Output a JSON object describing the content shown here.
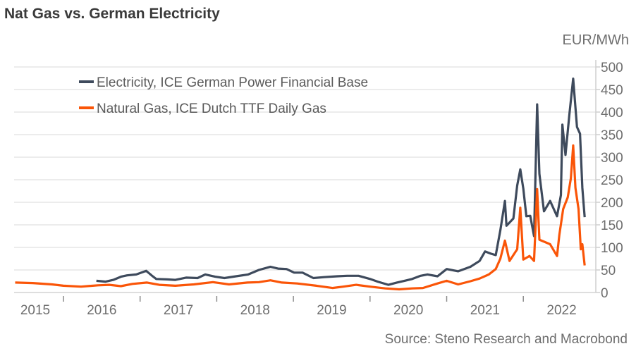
{
  "chart_data": {
    "type": "line",
    "title": "Nat Gas vs. German Electricity",
    "ylabel": "EUR/MWh",
    "source": "Source: Steno Research and Macrobond",
    "xlim": [
      2015.37,
      2022.85
    ],
    "ylim": [
      0,
      500
    ],
    "yticks": [
      0,
      50,
      100,
      150,
      200,
      250,
      300,
      350,
      400,
      450,
      500
    ],
    "ytick_labels": [
      "0",
      "50",
      "100",
      "150",
      "200",
      "250",
      "300",
      "350",
      "400",
      "450",
      "500"
    ],
    "xtick_positions": [
      2016,
      2017,
      2018,
      2019,
      2020,
      2021,
      2022
    ],
    "xlabels": [
      {
        "label": "2015",
        "x": 2015.5
      },
      {
        "label": "2016",
        "x": 2016.5
      },
      {
        "label": "2017",
        "x": 2017.5
      },
      {
        "label": "2018",
        "x": 2018.5
      },
      {
        "label": "2019",
        "x": 2019.5
      },
      {
        "label": "2020",
        "x": 2020.5
      },
      {
        "label": "2021",
        "x": 2021.5
      },
      {
        "label": "2022",
        "x": 2022.5
      }
    ],
    "grid": true,
    "legend_position": "top-left",
    "series": [
      {
        "name": "Electricity, ICE German Power Financial Base",
        "color": "#3e4a5c",
        "points": [
          [
            2016.43,
            26
          ],
          [
            2016.55,
            24
          ],
          [
            2016.65,
            28
          ],
          [
            2016.75,
            35
          ],
          [
            2016.83,
            38
          ],
          [
            2016.95,
            40
          ],
          [
            2017.08,
            48
          ],
          [
            2017.15,
            38
          ],
          [
            2017.21,
            30
          ],
          [
            2017.35,
            29
          ],
          [
            2017.46,
            28
          ],
          [
            2017.6,
            33
          ],
          [
            2017.75,
            32
          ],
          [
            2017.85,
            40
          ],
          [
            2017.98,
            35
          ],
          [
            2018.1,
            32
          ],
          [
            2018.25,
            36
          ],
          [
            2018.41,
            40
          ],
          [
            2018.55,
            50
          ],
          [
            2018.7,
            57
          ],
          [
            2018.8,
            53
          ],
          [
            2018.91,
            52
          ],
          [
            2019.01,
            44
          ],
          [
            2019.12,
            44
          ],
          [
            2019.26,
            32
          ],
          [
            2019.4,
            34
          ],
          [
            2019.57,
            36
          ],
          [
            2019.7,
            37
          ],
          [
            2019.85,
            37
          ],
          [
            2020.0,
            30
          ],
          [
            2020.1,
            24
          ],
          [
            2020.24,
            17
          ],
          [
            2020.35,
            22
          ],
          [
            2020.45,
            26
          ],
          [
            2020.55,
            30
          ],
          [
            2020.66,
            37
          ],
          [
            2020.75,
            40
          ],
          [
            2020.88,
            36
          ],
          [
            2021.0,
            52
          ],
          [
            2021.15,
            47
          ],
          [
            2021.31,
            57
          ],
          [
            2021.43,
            70
          ],
          [
            2021.5,
            91
          ],
          [
            2021.58,
            86
          ],
          [
            2021.64,
            83
          ],
          [
            2021.7,
            138
          ],
          [
            2021.76,
            203
          ],
          [
            2021.78,
            148
          ],
          [
            2021.87,
            164
          ],
          [
            2021.92,
            237
          ],
          [
            2021.96,
            273
          ],
          [
            2022.0,
            230
          ],
          [
            2022.04,
            169
          ],
          [
            2022.09,
            170
          ],
          [
            2022.14,
            125
          ],
          [
            2022.18,
            417
          ],
          [
            2022.21,
            263
          ],
          [
            2022.27,
            180
          ],
          [
            2022.35,
            203
          ],
          [
            2022.44,
            169
          ],
          [
            2022.49,
            216
          ],
          [
            2022.51,
            372
          ],
          [
            2022.55,
            305
          ],
          [
            2022.6,
            393
          ],
          [
            2022.65,
            474
          ],
          [
            2022.7,
            367
          ],
          [
            2022.74,
            352
          ],
          [
            2022.77,
            232
          ],
          [
            2022.8,
            167
          ]
        ]
      },
      {
        "name": "Natural Gas, ICE Dutch TTF Daily Gas",
        "color": "#fa5508",
        "points": [
          [
            2015.37,
            22
          ],
          [
            2015.6,
            21
          ],
          [
            2015.85,
            18
          ],
          [
            2016.0,
            15
          ],
          [
            2016.23,
            13
          ],
          [
            2016.45,
            16
          ],
          [
            2016.6,
            17
          ],
          [
            2016.75,
            14
          ],
          [
            2016.9,
            19
          ],
          [
            2017.09,
            22
          ],
          [
            2017.25,
            17
          ],
          [
            2017.46,
            15
          ],
          [
            2017.7,
            18
          ],
          [
            2017.95,
            23
          ],
          [
            2018.16,
            18
          ],
          [
            2018.4,
            22
          ],
          [
            2018.55,
            23
          ],
          [
            2018.7,
            27
          ],
          [
            2018.85,
            22
          ],
          [
            2019.05,
            20
          ],
          [
            2019.3,
            15
          ],
          [
            2019.51,
            10
          ],
          [
            2019.65,
            13
          ],
          [
            2019.82,
            17
          ],
          [
            2020.0,
            13
          ],
          [
            2020.2,
            9
          ],
          [
            2020.38,
            7
          ],
          [
            2020.55,
            9
          ],
          [
            2020.69,
            10
          ],
          [
            2020.88,
            20
          ],
          [
            2021.0,
            26
          ],
          [
            2021.15,
            18
          ],
          [
            2021.31,
            25
          ],
          [
            2021.43,
            31
          ],
          [
            2021.55,
            40
          ],
          [
            2021.64,
            52
          ],
          [
            2021.7,
            75
          ],
          [
            2021.76,
            115
          ],
          [
            2021.82,
            70
          ],
          [
            2021.92,
            96
          ],
          [
            2021.96,
            188
          ],
          [
            2022.0,
            73
          ],
          [
            2022.08,
            81
          ],
          [
            2022.14,
            70
          ],
          [
            2022.18,
            229
          ],
          [
            2022.21,
            117
          ],
          [
            2022.35,
            107
          ],
          [
            2022.44,
            81
          ],
          [
            2022.47,
            128
          ],
          [
            2022.52,
            185
          ],
          [
            2022.58,
            211
          ],
          [
            2022.62,
            253
          ],
          [
            2022.65,
            326
          ],
          [
            2022.68,
            232
          ],
          [
            2022.72,
            185
          ],
          [
            2022.75,
            96
          ],
          [
            2022.77,
            107
          ],
          [
            2022.8,
            60
          ]
        ]
      }
    ]
  }
}
